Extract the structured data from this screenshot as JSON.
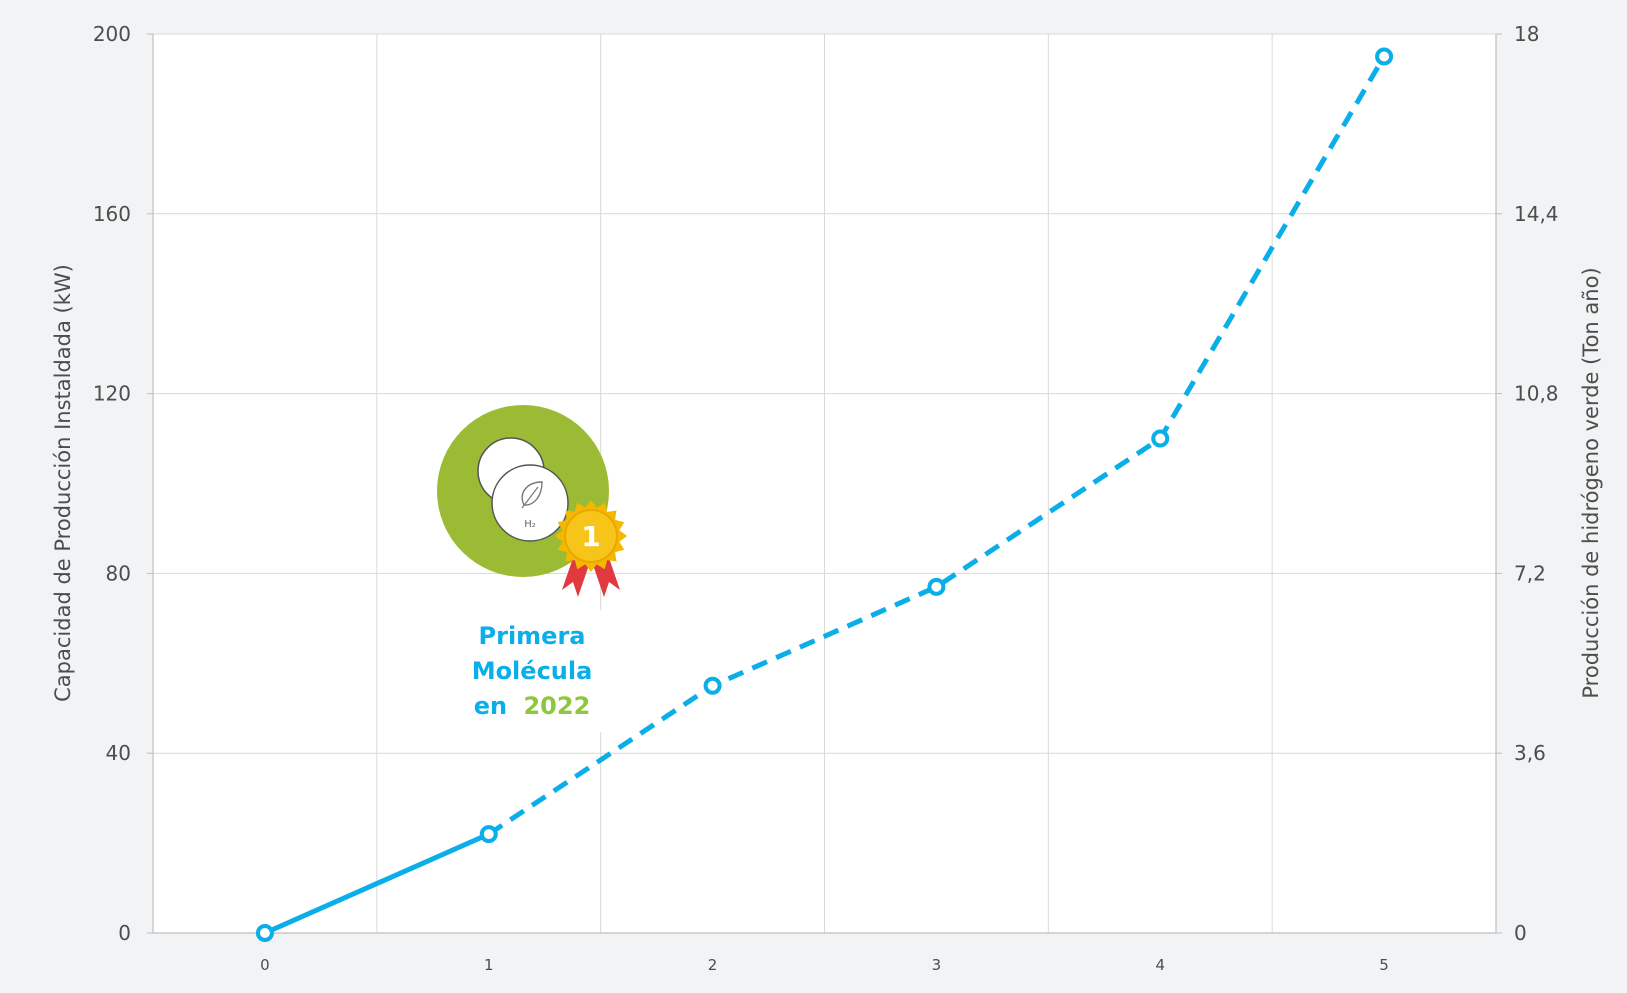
{
  "chart_data": {
    "type": "line",
    "x": [
      0,
      1,
      2,
      3,
      4,
      5
    ],
    "series": [
      {
        "values": [
          0,
          22,
          55,
          77,
          110,
          195
        ],
        "style": "solid then dashed",
        "solid_until_x": 1,
        "color": "#0aaee8"
      }
    ],
    "xlim": [
      -0.5,
      5.5
    ],
    "ylim": [
      0,
      200
    ],
    "y2lim": [
      0,
      18
    ],
    "xticks": [
      "0",
      "1",
      "2",
      "3",
      "4",
      "5"
    ],
    "yticks": [
      "0",
      "40",
      "80",
      "120",
      "160",
      "200"
    ],
    "y2ticks": [
      "0",
      "3,6",
      "7,2",
      "10,8",
      "14,4",
      "18"
    ],
    "ylabel": "Capacidad de Producción Instaldada (kW)",
    "y2label": "Producción de hidrógeno verde (Ton año)",
    "xlabel": "",
    "title": "",
    "grid": true,
    "annotation": {
      "line1": "Primera",
      "line2": "Molécula",
      "line3_prefix": "en",
      "line3_year": "2022",
      "badge_number": "1",
      "badge_icon_label": "H₂",
      "text_color": "#0aaee8",
      "year_color": "#8dc63f",
      "circle_color": "#9bbb34",
      "medal_color": "#f5b800"
    }
  }
}
